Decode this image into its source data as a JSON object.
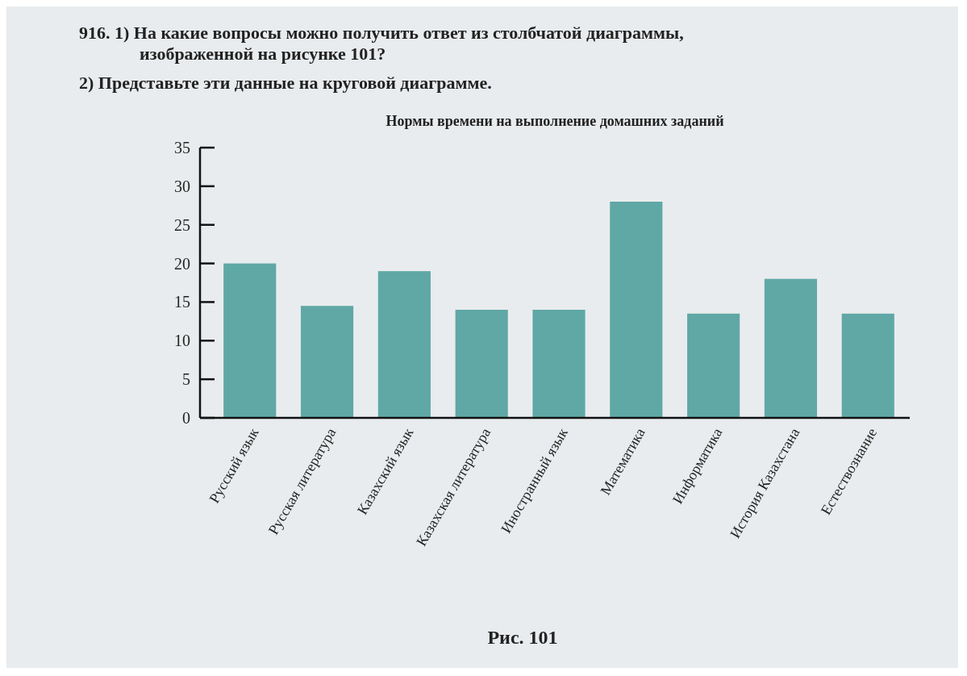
{
  "chart_data": {
    "type": "bar",
    "title": "Нормы времени на выполнение домашних заданий",
    "categories": [
      "Русский язык",
      "Русская литература",
      "Казахский язык",
      "Казахская литература",
      "Иностранный язык",
      "Математика",
      "Информатика",
      "История Казахстана",
      "Естествознание"
    ],
    "values": [
      20,
      14.5,
      19,
      14,
      14,
      28,
      13.5,
      18,
      13.5
    ],
    "color": "#5fa8a6",
    "ylim": [
      0,
      35
    ],
    "yticks": [
      0,
      5,
      10,
      15,
      20,
      25,
      30,
      35
    ],
    "annotations": [
      "916. 1) На какие вопросы можно получить ответ из столбчатой диаграммы, изображенной на рисунке 101?",
      "2) Представьте эти данные на круговой диаграмме.",
      "Рис. 101"
    ]
  }
}
